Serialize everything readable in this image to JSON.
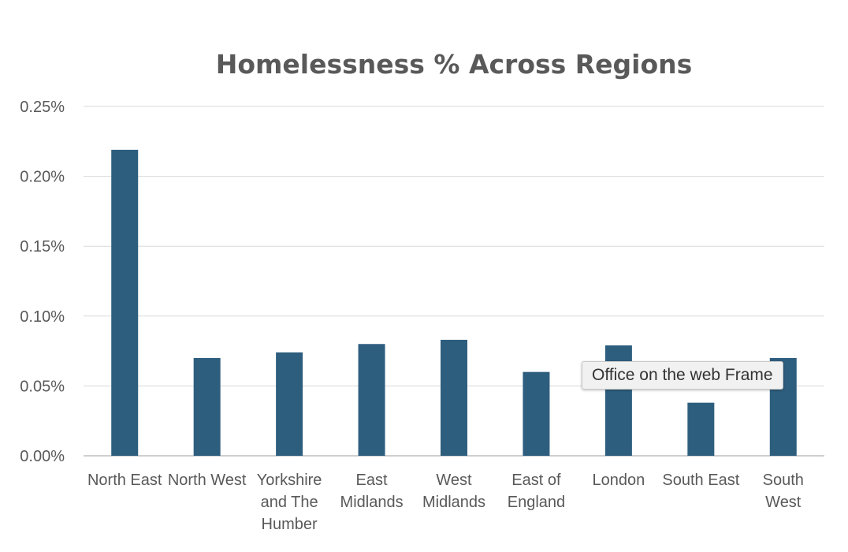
{
  "chart_data": {
    "type": "bar",
    "title": "Homelessness % Across Regions",
    "xlabel": "",
    "ylabel": "",
    "categories": [
      "North East",
      "North West",
      "Yorkshire and The Humber",
      "East Midlands",
      "West Midlands",
      "East of England",
      "London",
      "South East",
      "South West"
    ],
    "category_label_lines": [
      [
        "North East"
      ],
      [
        "North West"
      ],
      [
        "Yorkshire",
        "and The",
        "Humber"
      ],
      [
        "East",
        "Midlands"
      ],
      [
        "West",
        "Midlands"
      ],
      [
        "East of",
        "England"
      ],
      [
        "London"
      ],
      [
        "South East"
      ],
      [
        "South",
        "West"
      ]
    ],
    "values": [
      0.00219,
      0.0007,
      0.00074,
      0.0008,
      0.00083,
      0.0006,
      0.00079,
      0.00038,
      0.0007
    ],
    "ylim": [
      0,
      0.0025
    ],
    "yticks": [
      0,
      0.0005,
      0.001,
      0.0015,
      0.002,
      0.0025
    ],
    "ytick_labels": [
      "0.00%",
      "0.05%",
      "0.10%",
      "0.15%",
      "0.20%",
      "0.25%"
    ],
    "grid": true,
    "legend": "none",
    "bar_color": "#2e5e7e"
  },
  "tooltip": {
    "text": "Office on the web Frame"
  }
}
